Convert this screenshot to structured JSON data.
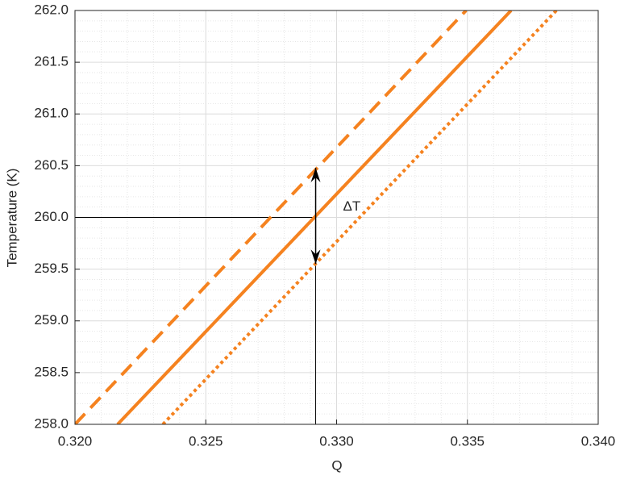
{
  "chart_data": {
    "type": "line",
    "x_label": "Q",
    "y_label": "Temperature (K)",
    "xlim": [
      0.32,
      0.34
    ],
    "ylim": [
      258.0,
      262.0
    ],
    "xticks": [
      {
        "value": 0.32,
        "label": "0.320"
      },
      {
        "value": 0.325,
        "label": "0.325"
      },
      {
        "value": 0.33,
        "label": "0.330"
      },
      {
        "value": 0.335,
        "label": "0.335"
      },
      {
        "value": 0.34,
        "label": "0.340"
      }
    ],
    "yticks": [
      {
        "value": 258.0,
        "label": "258.0"
      },
      258.5,
      {
        "value": 259.0,
        "label": "259.0"
      },
      259.5,
      {
        "value": 260.0,
        "label": "260.0"
      },
      260.5,
      {
        "value": 261.0,
        "label": "261.0"
      },
      261.5,
      {
        "value": 262.0,
        "label": "262.0"
      }
    ],
    "grid": true,
    "minor_grid_divisions": 5,
    "series": [
      {
        "x": [
          0.32,
          0.33495
        ],
        "values": [
          258.0,
          262.0
        ],
        "color": "#f5821f",
        "line_style": "dashed"
      },
      {
        "x": [
          0.32163,
          0.33667
        ],
        "values": [
          258.0,
          262.0
        ],
        "color": "#f5821f",
        "line_style": "solid"
      },
      {
        "x": [
          0.32336,
          0.3384
        ],
        "values": [
          258.0,
          262.0
        ],
        "color": "#f5821f",
        "line_style": "dotted"
      }
    ],
    "guide": {
      "x": [
        0.32,
        0.3292,
        0.3292
      ],
      "values": [
        260.0,
        260.0,
        258.0
      ],
      "color": "#000000"
    },
    "arrow": {
      "x": 0.3292,
      "from": 259.55,
      "to": 260.48,
      "color": "#000000"
    },
    "annotation": {
      "text": "ΔT",
      "x": 0.33,
      "y": 260.1
    }
  }
}
